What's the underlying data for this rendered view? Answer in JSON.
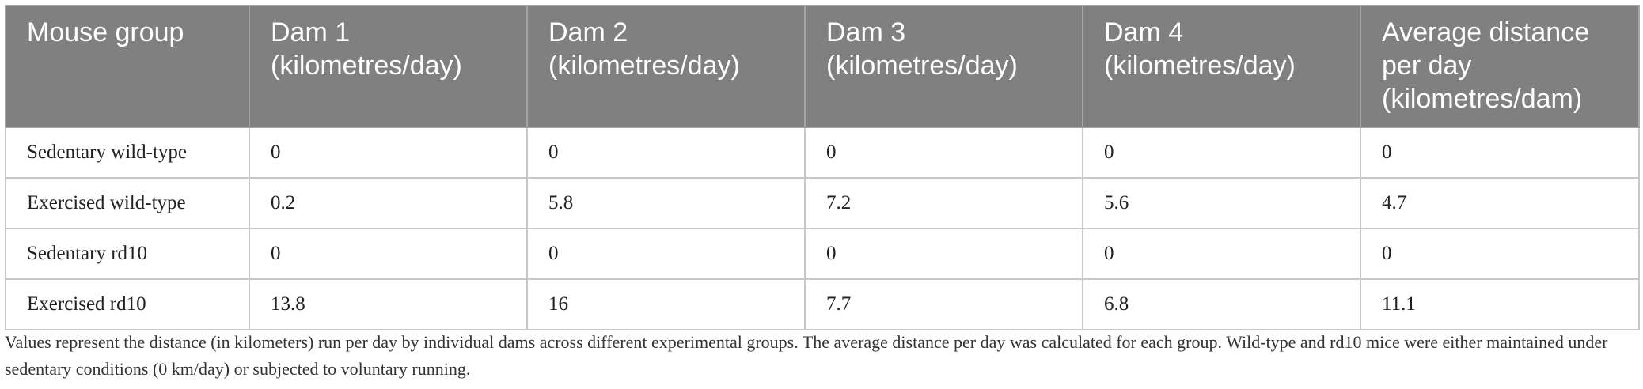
{
  "table": {
    "headers": [
      "Mouse group",
      "Dam 1 (kilometres/day)",
      "Dam 2 (kilometres/day)",
      "Dam 3 (kilometres/day)",
      "Dam 4 (kilometres/day)",
      "Average distance per day (kilometres/dam)"
    ],
    "rows": [
      [
        "Sedentary wild-type",
        "0",
        "0",
        "0",
        "0",
        "0"
      ],
      [
        "Exercised wild-type",
        "0.2",
        "5.8",
        "7.2",
        "5.6",
        "4.7"
      ],
      [
        "Sedentary rd10",
        "0",
        "0",
        "0",
        "0",
        "0"
      ],
      [
        "Exercised rd10",
        "13.8",
        "16",
        "7.7",
        "6.8",
        "11.1"
      ]
    ]
  },
  "footnote": "Values represent the distance (in kilometers) run per day by individual dams across different experimental groups. The average distance per day was calculated for each group. Wild-type and rd10 mice were either maintained under sedentary conditions (0 km/day) or subjected to voluntary running."
}
